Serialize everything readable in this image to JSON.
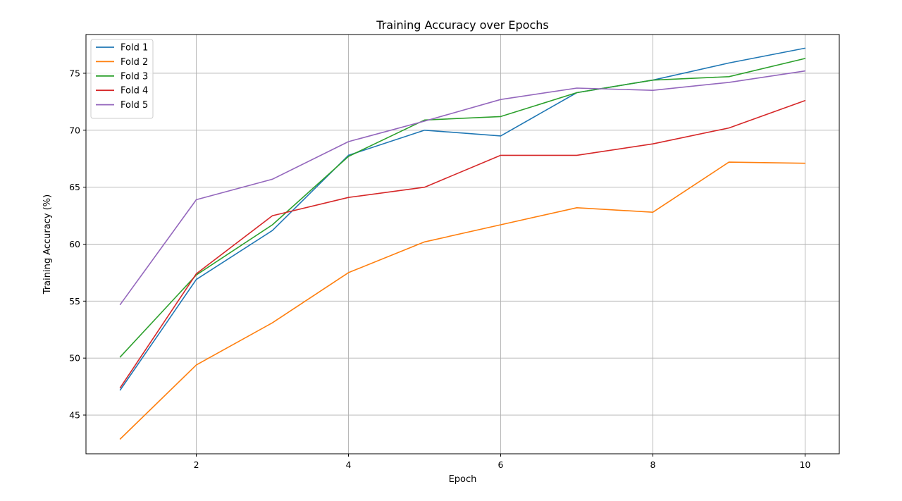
{
  "chart_data": {
    "type": "line",
    "title": "Training Accuracy over Epochs",
    "xlabel": "Epoch",
    "ylabel": "Training Accuracy (%)",
    "x": [
      1,
      2,
      3,
      4,
      5,
      6,
      7,
      8,
      9,
      10
    ],
    "xlim": [
      0.55,
      10.45
    ],
    "ylim": [
      41.6,
      78.4
    ],
    "xticks": [
      2,
      4,
      6,
      8,
      10
    ],
    "yticks": [
      45,
      50,
      55,
      60,
      65,
      70,
      75
    ],
    "grid": true,
    "legend_position": "top-left",
    "series": [
      {
        "name": "Fold 1",
        "color": "#1f77b4",
        "values": [
          47.2,
          56.9,
          61.2,
          67.8,
          70.0,
          69.5,
          73.3,
          74.4,
          75.9,
          77.2
        ]
      },
      {
        "name": "Fold 2",
        "color": "#ff7f0e",
        "values": [
          42.9,
          49.4,
          53.1,
          57.5,
          60.2,
          61.7,
          63.2,
          62.8,
          67.2,
          67.1
        ]
      },
      {
        "name": "Fold 3",
        "color": "#2ca02c",
        "values": [
          50.1,
          57.3,
          61.7,
          67.7,
          70.9,
          71.2,
          73.3,
          74.4,
          74.7,
          76.3
        ]
      },
      {
        "name": "Fold 4",
        "color": "#d62728",
        "values": [
          47.4,
          57.4,
          62.5,
          64.1,
          65.0,
          67.8,
          67.8,
          68.8,
          70.2,
          72.6
        ]
      },
      {
        "name": "Fold 5",
        "color": "#9467bd",
        "values": [
          54.7,
          63.9,
          65.7,
          69.0,
          70.8,
          72.7,
          73.7,
          73.5,
          74.2,
          75.2
        ]
      }
    ]
  }
}
